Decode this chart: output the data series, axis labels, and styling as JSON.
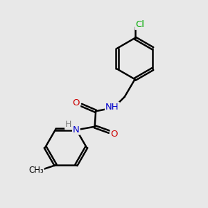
{
  "bg_color": "#e8e8e8",
  "atom_colors": {
    "C": "#000000",
    "H": "#7a7a7a",
    "N": "#0000cc",
    "O": "#cc0000",
    "Cl": "#00aa00"
  },
  "bond_color": "#000000",
  "bond_width": 1.8,
  "dbo": 0.07,
  "figsize": [
    3.0,
    3.0
  ],
  "dpi": 100,
  "ring_r": 1.0,
  "xlim": [
    0,
    10
  ],
  "ylim": [
    0,
    10
  ]
}
